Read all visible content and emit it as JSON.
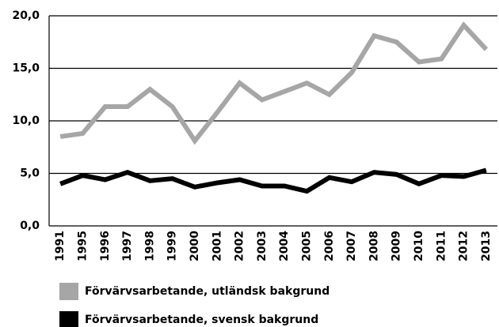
{
  "chart_data": {
    "type": "line",
    "categories": [
      "1991",
      "1995",
      "1996",
      "1997",
      "1998",
      "1999",
      "2000",
      "2001",
      "2002",
      "2003",
      "2004",
      "2005",
      "2006",
      "2007",
      "2008",
      "2009",
      "2010",
      "2011",
      "2012",
      "2013"
    ],
    "series": [
      {
        "name": "Förvärvsarbetande, utländsk bakgrund",
        "color": "#a6a6a6",
        "values": [
          8.5,
          8.8,
          11.35,
          11.35,
          13.0,
          11.35,
          8.1,
          10.8,
          13.6,
          12.0,
          12.8,
          13.6,
          12.5,
          14.6,
          18.1,
          17.5,
          15.6,
          15.9,
          19.1,
          16.8
        ]
      },
      {
        "name": "Förvärvsarbetande, svensk bakgrund",
        "color": "#000000",
        "values": [
          4.0,
          4.8,
          4.4,
          5.1,
          4.3,
          4.5,
          3.7,
          4.1,
          4.4,
          3.8,
          3.8,
          3.3,
          4.6,
          4.2,
          5.1,
          4.9,
          4.0,
          4.8,
          4.7,
          5.3
        ]
      }
    ],
    "ylim": [
      0,
      20
    ],
    "yticks": [
      {
        "value": 0,
        "label": "0,0"
      },
      {
        "value": 5,
        "label": "5,0"
      },
      {
        "value": 10,
        "label": "10,0"
      },
      {
        "value": 15,
        "label": "15,0"
      },
      {
        "value": 20,
        "label": "20,0"
      }
    ],
    "grid": true,
    "legend": "bottom"
  }
}
